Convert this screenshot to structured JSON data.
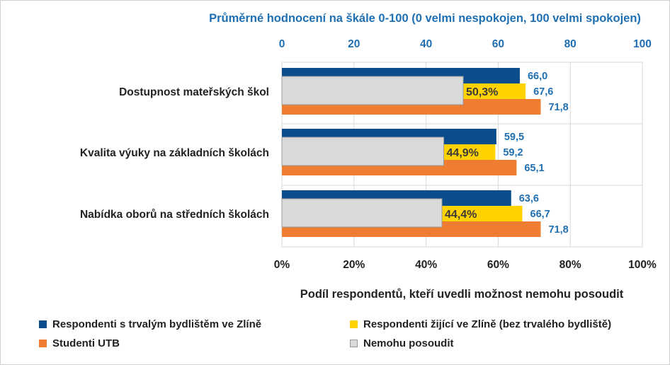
{
  "chart_data": {
    "type": "bar",
    "orientation": "horizontal",
    "title": "Průměrné hodnocení na škále 0-100 (0 velmi nespokojen, 100 velmi spokojen)",
    "xlabel": "Podíl respondentů, kteří uvedli možnost nemohu posoudit",
    "categories": [
      "Dostupnost mateřských škol",
      "Kvalita výuky na základních školách",
      "Nabídka oborů na středních školách"
    ],
    "top_axis": {
      "range": [
        0,
        100
      ],
      "ticks": [
        "0",
        "20",
        "40",
        "60",
        "80",
        "100"
      ]
    },
    "bottom_axis": {
      "range": [
        0,
        100
      ],
      "ticks": [
        "0%",
        "20%",
        "40%",
        "60%",
        "80%",
        "100%"
      ]
    },
    "grid": true,
    "series": [
      {
        "name": "Respondenti s trvalým bydlištěm ve Zlíně",
        "color": "#0b4c8c",
        "values": [
          66.0,
          59.5,
          63.6
        ],
        "labels": [
          "66,0",
          "59,5",
          "63,6"
        ]
      },
      {
        "name": "Respondenti žijící ve Zlíně (bez trvalého bydliště)",
        "color": "#ffd200",
        "values": [
          67.6,
          59.2,
          66.7
        ],
        "labels": [
          "67,6",
          "59,2",
          "66,7"
        ]
      },
      {
        "name": "Studenti UTB",
        "color": "#ee7d31",
        "values": [
          71.8,
          65.1,
          71.8
        ],
        "labels": [
          "71,8",
          "65,1",
          "71,8"
        ]
      },
      {
        "name": "Nemohu posoudit",
        "color": "#d9d9d9",
        "values": [
          50.3,
          44.9,
          44.4
        ],
        "labels": [
          "50,3%",
          "44,9%",
          "44,4%"
        ]
      }
    ],
    "label_color": "#1f6fb2",
    "legend_position": "bottom"
  }
}
